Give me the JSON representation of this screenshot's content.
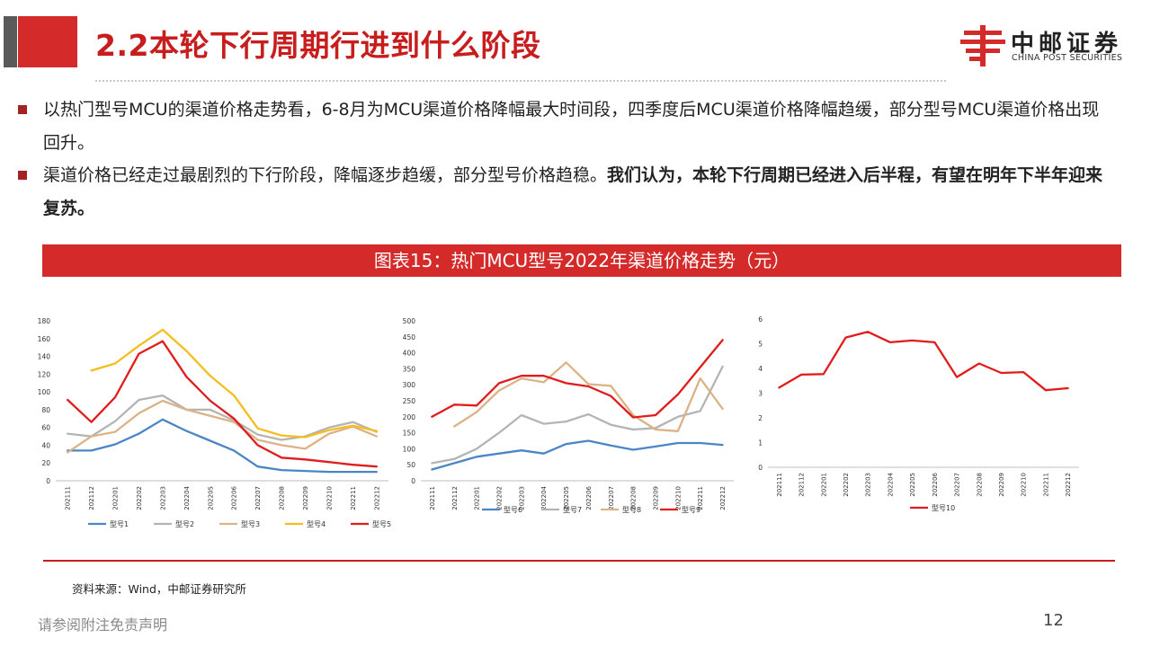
{
  "header": {
    "title": "2.2本轮下行周期行进到什么阶段",
    "logo_cn": "中邮证券",
    "logo_en": "CHINA POST SECURITIES"
  },
  "bullets": [
    {
      "text": "以热门型号MCU的渠道价格走势看，6-8月为MCU渠道价格降幅最大时间段，四季度后MCU渠道价格降幅趋缓，部分型号MCU渠道价格出现回升。"
    },
    {
      "text_normal": "渠道价格已经走过最剧烈的下行阶段，降幅逐步趋缓，部分型号价格趋稳。",
      "text_bold": "我们认为，本轮下行周期已经进入后半程，有望在明年下半年迎来复苏。"
    }
  ],
  "caption": "图表15：热门MCU型号2022年渠道价格走势（元）",
  "source": "资料来源：Wind，中邮证券研究所",
  "footer": "请参阅附注免责声明",
  "page_number": "12",
  "chart_data": [
    {
      "type": "line",
      "x": [
        "202111",
        "202112",
        "202201",
        "202202",
        "202203",
        "202204",
        "202205",
        "202206",
        "202207",
        "202208",
        "202209",
        "202210",
        "202211",
        "202212"
      ],
      "ylim": [
        0,
        180
      ],
      "yticks": [
        0,
        20,
        40,
        60,
        80,
        100,
        120,
        140,
        160,
        180
      ],
      "title": "",
      "xlabel": "",
      "ylabel": "",
      "legend": "bottom",
      "grid": false,
      "series": [
        {
          "name": "型号1",
          "color": "#4a86c5",
          "values": [
            34,
            34,
            41,
            53,
            69,
            56,
            45,
            34,
            16,
            12,
            11,
            10,
            10,
            10
          ]
        },
        {
          "name": "型号2",
          "color": "#b4b4b4",
          "values": [
            53,
            50,
            67,
            91,
            96,
            80,
            80,
            68,
            52,
            46,
            50,
            60,
            66,
            55
          ]
        },
        {
          "name": "型号3",
          "color": "#dcb286",
          "values": [
            32,
            50,
            55,
            76,
            90,
            80,
            73,
            66,
            46,
            40,
            36,
            53,
            61,
            50
          ]
        },
        {
          "name": "型号4",
          "color": "#f5bd1e",
          "values": [
            null,
            124,
            132,
            152,
            170,
            146,
            118,
            96,
            59,
            51,
            49,
            57,
            62,
            56
          ]
        },
        {
          "name": "型号5",
          "color": "#e01c1c",
          "values": [
            91,
            66,
            94,
            143,
            157,
            117,
            90,
            70,
            40,
            26,
            24,
            21,
            18,
            16
          ]
        }
      ]
    },
    {
      "type": "line",
      "x": [
        "202111",
        "202112",
        "202201",
        "202202",
        "202203",
        "202204",
        "202205",
        "202206",
        "202207",
        "202208",
        "202209",
        "202210",
        "202211",
        "202212"
      ],
      "ylim": [
        0,
        500
      ],
      "yticks": [
        0,
        50,
        100,
        150,
        200,
        250,
        300,
        350,
        400,
        450,
        500
      ],
      "title": "",
      "xlabel": "",
      "ylabel": "",
      "legend": "bottom",
      "grid": false,
      "series": [
        {
          "name": "型号6",
          "color": "#4a86c5",
          "values": [
            35,
            55,
            75,
            85,
            95,
            85,
            115,
            125,
            110,
            97,
            107,
            118,
            118,
            112
          ]
        },
        {
          "name": "型号7",
          "color": "#b4b4b4",
          "values": [
            55,
            68,
            100,
            150,
            205,
            178,
            185,
            208,
            175,
            160,
            165,
            200,
            218,
            357
          ]
        },
        {
          "name": "型号8",
          "color": "#dcb286",
          "values": [
            null,
            170,
            215,
            282,
            320,
            308,
            370,
            302,
            297,
            205,
            160,
            155,
            320,
            225
          ]
        },
        {
          "name": "型号9",
          "color": "#e01c1c",
          "values": [
            200,
            238,
            235,
            305,
            328,
            328,
            305,
            295,
            265,
            198,
            205,
            270,
            355,
            440
          ]
        }
      ]
    },
    {
      "type": "line",
      "x": [
        "202111",
        "202112",
        "202201",
        "202202",
        "202203",
        "202204",
        "202205",
        "202206",
        "202207",
        "202208",
        "202209",
        "202210",
        "202211",
        "202212"
      ],
      "ylim": [
        0,
        6
      ],
      "yticks": [
        0,
        1,
        2,
        3,
        4,
        5,
        6
      ],
      "title": "",
      "xlabel": "",
      "ylabel": "",
      "legend": "bottom",
      "grid": false,
      "series": [
        {
          "name": "型号10",
          "color": "#e01c1c",
          "values": [
            3.22,
            3.75,
            3.77,
            5.25,
            5.48,
            5.06,
            5.13,
            5.06,
            3.65,
            4.2,
            3.82,
            3.85,
            3.12,
            3.2
          ]
        }
      ]
    }
  ]
}
